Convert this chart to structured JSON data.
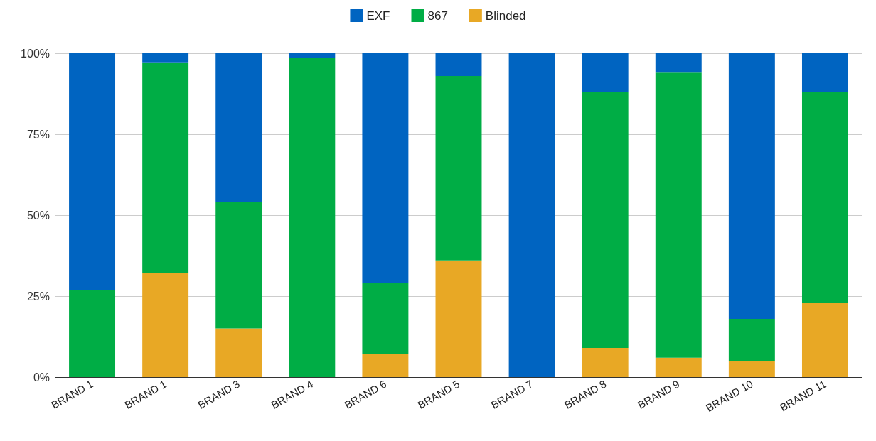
{
  "chart_data": {
    "type": "bar",
    "stacked": true,
    "categories": [
      "BRAND 1",
      "BRAND 1",
      "BRAND 3",
      "BRAND 4",
      "BRAND 6",
      "BRAND 5",
      "BRAND 7",
      "BRAND 8",
      "BRAND 9",
      "BRAND 10",
      "BRAND 11"
    ],
    "series": [
      {
        "name": "Blinded",
        "color": "#e8a825",
        "values": [
          0,
          32,
          15,
          0,
          7,
          36,
          0,
          9,
          6,
          5,
          23
        ]
      },
      {
        "name": "867",
        "color": "#00ad45",
        "values": [
          27,
          65,
          39,
          98.5,
          22,
          57,
          0,
          79,
          88,
          13,
          65
        ]
      },
      {
        "name": "EXF",
        "color": "#0064c1",
        "values": [
          73,
          3,
          46,
          1.5,
          71,
          7,
          100,
          12,
          6,
          82,
          12
        ]
      }
    ],
    "ylim": [
      0,
      100
    ],
    "yticks": [
      {
        "value": 0,
        "label": "0%"
      },
      {
        "value": 25,
        "label": "25%"
      },
      {
        "value": 50,
        "label": "50%"
      },
      {
        "value": 75,
        "label": "75%"
      },
      {
        "value": 100,
        "label": "100%"
      }
    ],
    "grid": "y",
    "legend": "top"
  }
}
